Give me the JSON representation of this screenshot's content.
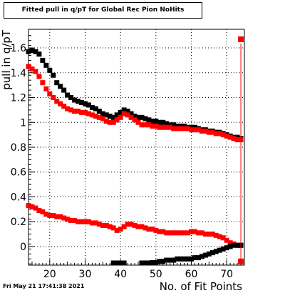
{
  "title": "Fitted pull in q/pT for Global Rec Pion NoHits",
  "timestamp": "Fri May 21 17:41:38 2021",
  "chart_data": {
    "type": "scatter",
    "xlabel": "No. of Fit Points",
    "ylabel": "pull in q/pT",
    "xlim": [
      14,
      75
    ],
    "ylim": [
      -0.15,
      1.75
    ],
    "x_ticks": [
      "20",
      "30",
      "40",
      "50",
      "60",
      "70"
    ],
    "y_ticks": [
      "0",
      "0.2",
      "0.4",
      "0.6",
      "0.8",
      "1",
      "1.2",
      "1.4",
      "1.6"
    ],
    "grid": true,
    "series": [
      {
        "color": "#000000",
        "marker": "square",
        "x": [
          14,
          15,
          16,
          17,
          18,
          19,
          20,
          21,
          22,
          23,
          24,
          25,
          26,
          27,
          28,
          29,
          30,
          31,
          32,
          33,
          34,
          35,
          36,
          37,
          38,
          39,
          40,
          41,
          42,
          43,
          44,
          45,
          46,
          47,
          48,
          49,
          50,
          51,
          52,
          53,
          54,
          55,
          56,
          57,
          58,
          59,
          60,
          61,
          62,
          63,
          64,
          65,
          66,
          67,
          68,
          69,
          70,
          71,
          72,
          73,
          74
        ],
        "y": [
          1.57,
          1.58,
          1.57,
          1.55,
          1.5,
          1.46,
          1.42,
          1.38,
          1.32,
          1.29,
          1.26,
          1.22,
          1.2,
          1.18,
          1.17,
          1.16,
          1.15,
          1.14,
          1.12,
          1.11,
          1.09,
          1.07,
          1.06,
          1.05,
          1.04,
          1.06,
          1.08,
          1.1,
          1.09,
          1.07,
          1.05,
          1.04,
          1.04,
          1.03,
          1.02,
          1.01,
          1.01,
          1.0,
          1.0,
          0.99,
          0.98,
          0.98,
          0.97,
          0.97,
          0.97,
          0.96,
          0.96,
          0.96,
          0.95,
          0.94,
          0.94,
          0.93,
          0.93,
          0.92,
          0.92,
          0.91,
          0.9,
          0.89,
          0.88,
          0.88,
          0.87
        ]
      },
      {
        "color": "#ff0000",
        "marker": "square",
        "x": [
          14,
          15,
          16,
          17,
          18,
          19,
          20,
          21,
          22,
          23,
          24,
          25,
          26,
          27,
          28,
          29,
          30,
          31,
          32,
          33,
          34,
          35,
          36,
          37,
          38,
          39,
          40,
          41,
          42,
          43,
          44,
          45,
          46,
          47,
          48,
          49,
          50,
          51,
          52,
          53,
          54,
          55,
          56,
          57,
          58,
          59,
          60,
          61,
          62,
          63,
          64,
          65,
          66,
          67,
          68,
          69,
          70,
          71,
          72,
          73,
          74
        ],
        "y": [
          1.45,
          1.43,
          1.41,
          1.37,
          1.32,
          1.27,
          1.23,
          1.2,
          1.17,
          1.15,
          1.13,
          1.11,
          1.1,
          1.09,
          1.09,
          1.08,
          1.08,
          1.07,
          1.06,
          1.05,
          1.04,
          1.03,
          1.01,
          1.0,
          1.0,
          1.02,
          1.04,
          1.07,
          1.06,
          1.04,
          1.02,
          1.0,
          0.98,
          0.98,
          0.98,
          0.97,
          0.97,
          0.96,
          0.96,
          0.96,
          0.96,
          0.95,
          0.95,
          0.95,
          0.95,
          0.95,
          0.94,
          0.94,
          0.94,
          0.93,
          0.93,
          0.92,
          0.92,
          0.91,
          0.91,
          0.9,
          0.89,
          0.88,
          0.87,
          0.86,
          0.86
        ]
      },
      {
        "color": "#ff0000",
        "marker": "square",
        "x": [
          14,
          15,
          16,
          17,
          18,
          19,
          20,
          21,
          22,
          23,
          24,
          25,
          26,
          27,
          28,
          29,
          30,
          31,
          32,
          33,
          34,
          35,
          36,
          37,
          38,
          39,
          40,
          41,
          42,
          43,
          44,
          45,
          46,
          47,
          48,
          49,
          50,
          51,
          52,
          53,
          54,
          55,
          56,
          57,
          58,
          59,
          60,
          61,
          62,
          63,
          64,
          65,
          66,
          67,
          68,
          69,
          70,
          71,
          72,
          73,
          74
        ],
        "y": [
          0.33,
          0.32,
          0.31,
          0.29,
          0.28,
          0.26,
          0.25,
          0.25,
          0.24,
          0.24,
          0.23,
          0.22,
          0.21,
          0.21,
          0.2,
          0.2,
          0.2,
          0.2,
          0.19,
          0.19,
          0.18,
          0.17,
          0.17,
          0.16,
          0.15,
          0.13,
          0.14,
          0.16,
          0.18,
          0.18,
          0.17,
          0.16,
          0.16,
          0.15,
          0.14,
          0.14,
          0.13,
          0.12,
          0.12,
          0.11,
          0.11,
          0.11,
          0.11,
          0.11,
          0.11,
          0.11,
          0.12,
          0.12,
          0.11,
          0.11,
          0.1,
          0.1,
          0.1,
          0.09,
          0.08,
          0.07,
          0.05,
          0.03,
          0.02,
          0.01,
          0.01
        ]
      },
      {
        "color": "#000000",
        "marker": "square",
        "x": [
          38,
          39,
          40,
          41,
          46,
          47,
          48,
          49,
          50,
          51,
          52,
          53,
          54,
          55,
          56,
          57,
          58,
          59,
          60,
          61,
          62,
          63,
          64,
          65,
          66,
          67,
          68,
          69,
          70,
          71,
          72,
          73,
          74
        ],
        "y": [
          -0.16,
          -0.16,
          -0.15,
          -0.16,
          -0.16,
          -0.15,
          -0.14,
          -0.13,
          -0.13,
          -0.12,
          -0.12,
          -0.11,
          -0.11,
          -0.11,
          -0.1,
          -0.1,
          -0.1,
          -0.1,
          -0.1,
          -0.09,
          -0.09,
          -0.08,
          -0.07,
          -0.06,
          -0.05,
          -0.04,
          -0.03,
          -0.02,
          -0.01,
          0.0,
          0.01,
          0.01,
          0.01
        ]
      },
      {
        "color": "#ff0000",
        "marker": "dot",
        "x": [
          74,
          74
        ],
        "y": [
          1.67,
          -0.12
        ]
      }
    ]
  }
}
